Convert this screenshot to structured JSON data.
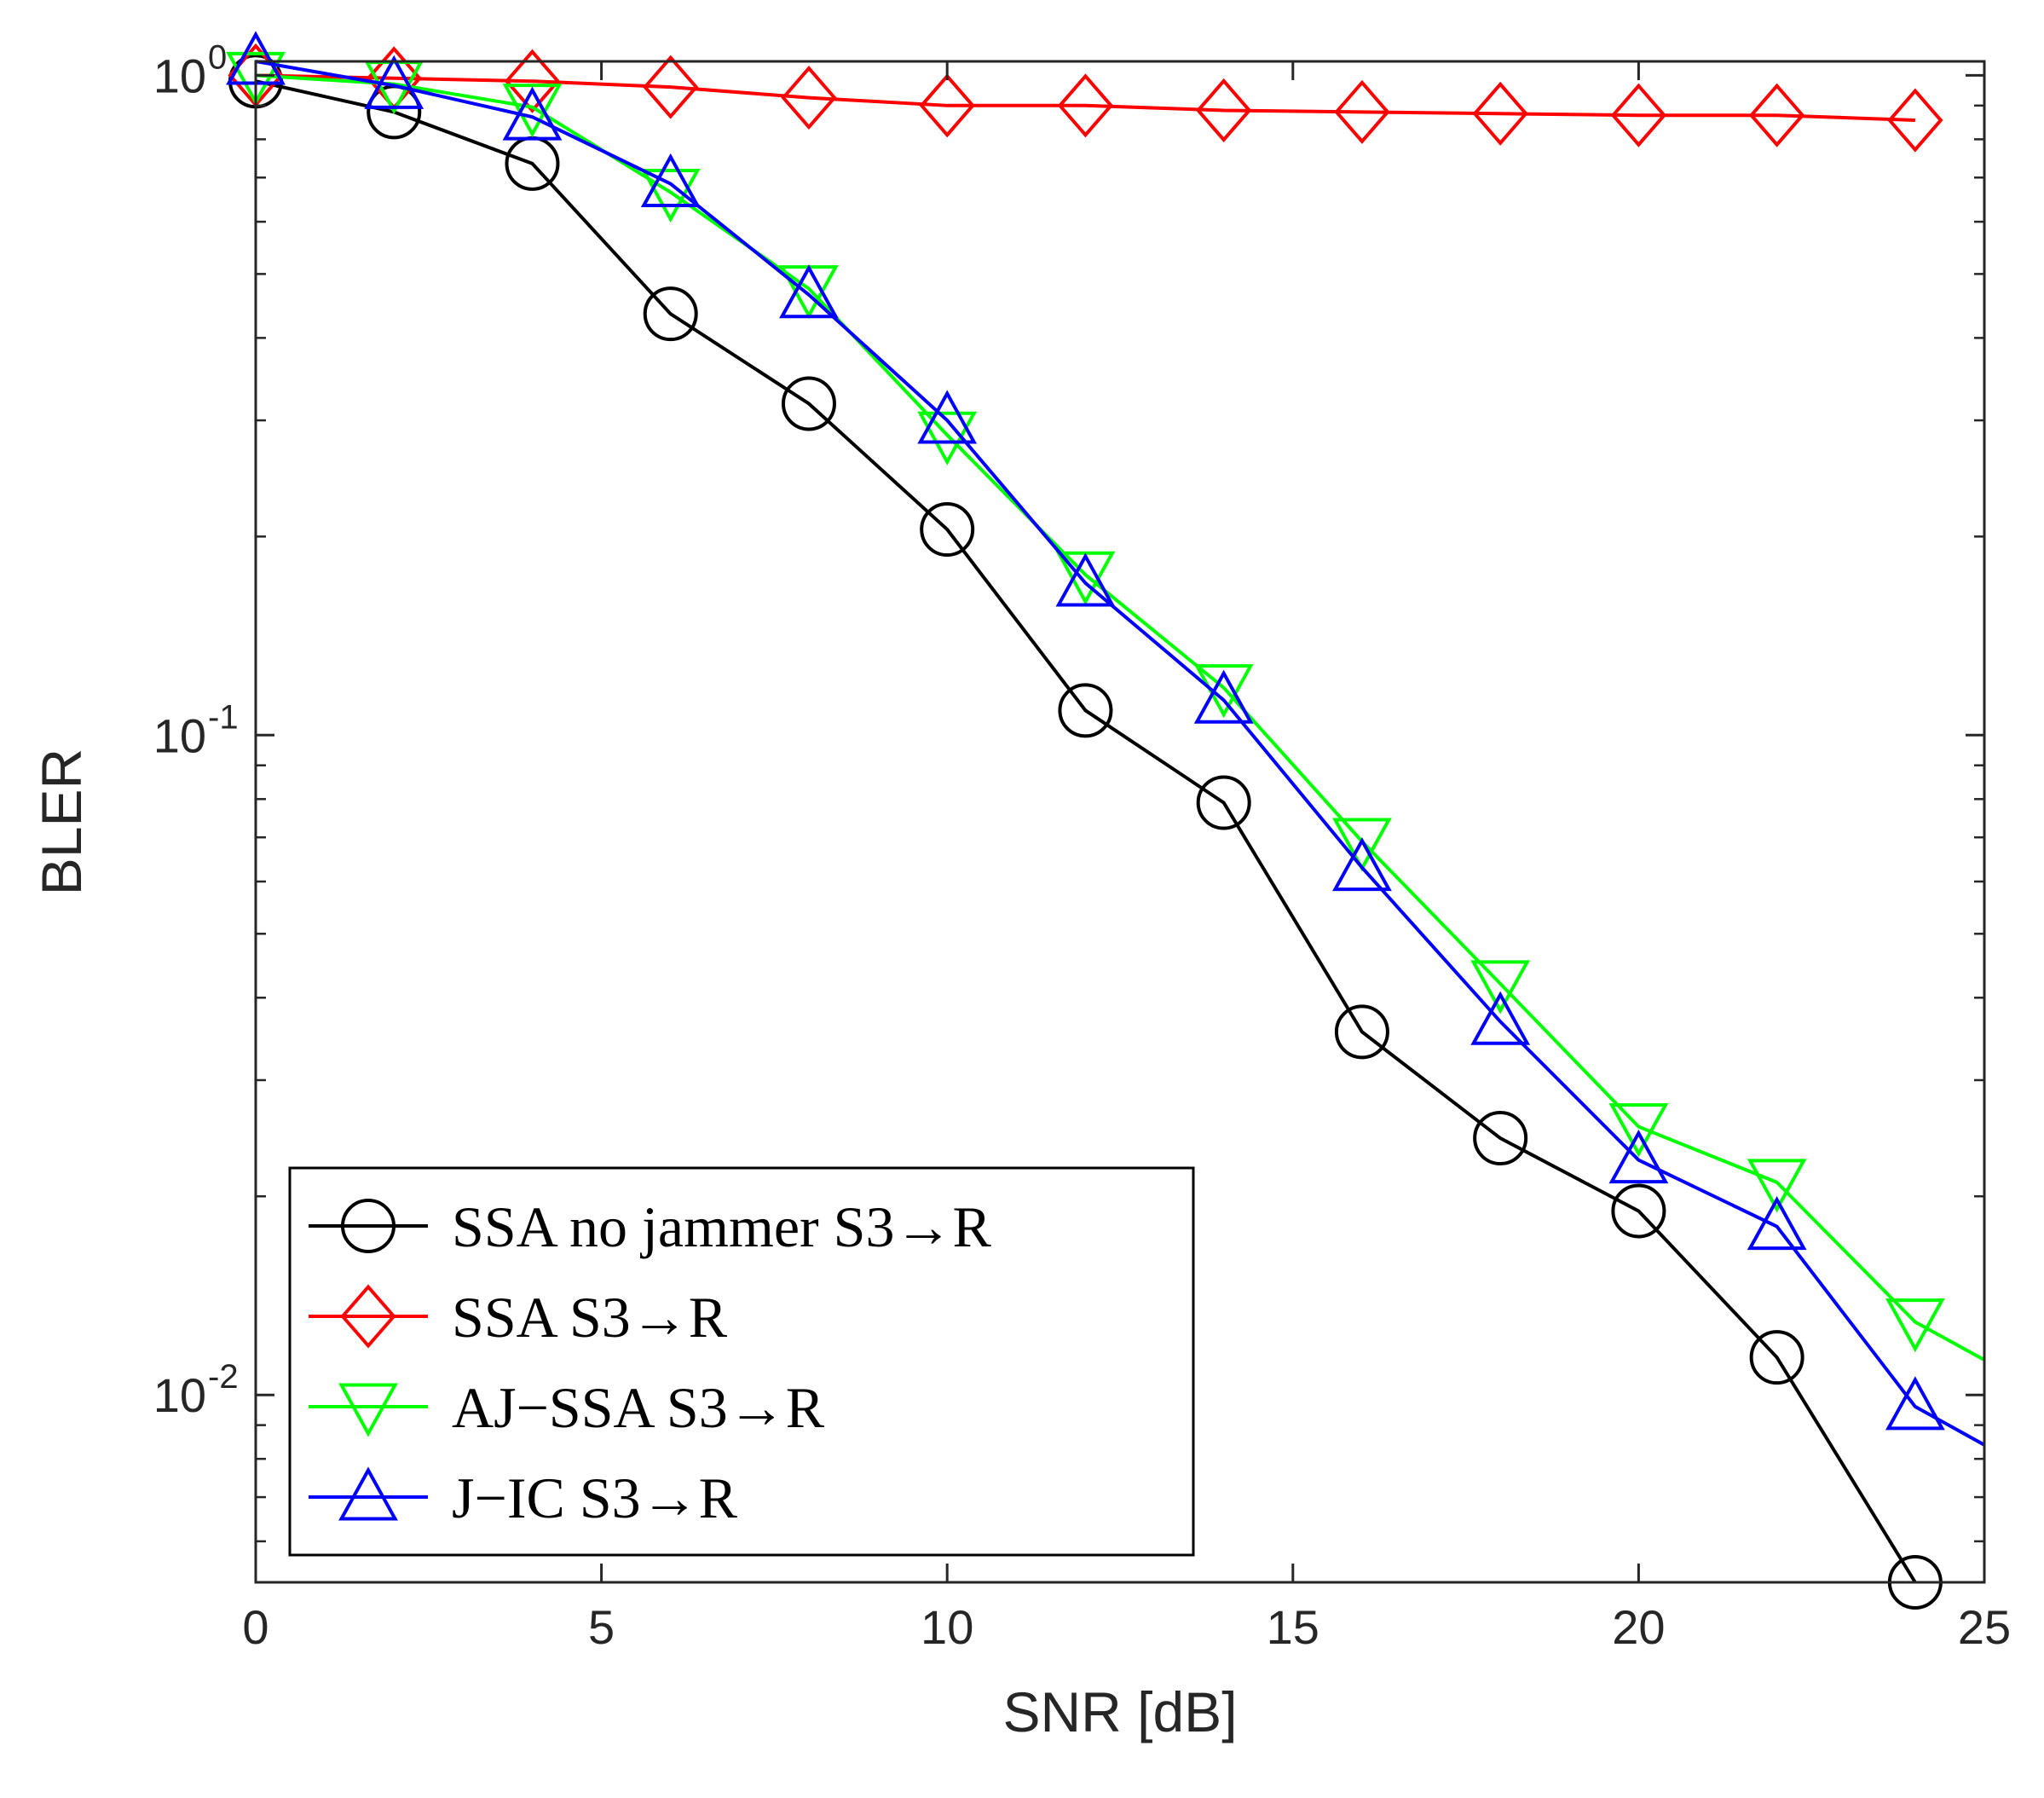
{
  "chart_data": {
    "type": "line",
    "xlabel": "SNR [dB]",
    "ylabel": "BLER",
    "xscale": "linear",
    "yscale": "log",
    "xlim": [
      0,
      25
    ],
    "ylim": [
      0.0052,
      1.05
    ],
    "xticks": [
      {
        "value": 0,
        "label": "0"
      },
      {
        "value": 5,
        "label": "5"
      },
      {
        "value": 10,
        "label": "10"
      },
      {
        "value": 15,
        "label": "15"
      },
      {
        "value": 20,
        "label": "20"
      },
      {
        "value": 25,
        "label": "25"
      }
    ],
    "yticks": [
      {
        "value": 1,
        "base": "10",
        "exp": "0"
      },
      {
        "value": 0.1,
        "base": "10",
        "exp": "-1"
      },
      {
        "value": 0.01,
        "base": "10",
        "exp": "-2"
      }
    ],
    "legend_position": "bottom-left",
    "series": [
      {
        "name": "SSA no jammer S3→R",
        "color": "#000000",
        "marker": "circle",
        "x": [
          0,
          2,
          4,
          6,
          8,
          10,
          12,
          14,
          16,
          18,
          20,
          22,
          24
        ],
        "y": [
          0.98,
          0.88,
          0.735,
          0.435,
          0.318,
          0.205,
          0.109,
          0.079,
          0.0355,
          0.0245,
          0.019,
          0.0114,
          0.0052
        ]
      },
      {
        "name": "SSA S3→R",
        "color": "#ff0000",
        "marker": "diamond",
        "x": [
          0,
          2,
          4,
          6,
          8,
          10,
          12,
          14,
          16,
          18,
          20,
          22,
          24
        ],
        "y": [
          1.0,
          0.99,
          0.98,
          0.96,
          0.925,
          0.9,
          0.9,
          0.885,
          0.88,
          0.875,
          0.87,
          0.87,
          0.855
        ]
      },
      {
        "name": "AJ−SSA S3→R",
        "color": "#00ff00",
        "marker": "triangle-down",
        "x": [
          0,
          2,
          4,
          6,
          8,
          10,
          12,
          14,
          16,
          18,
          20,
          22,
          24,
          25
        ],
        "y": [
          1.0,
          0.97,
          0.895,
          0.665,
          0.475,
          0.285,
          0.175,
          0.118,
          0.069,
          0.042,
          0.0255,
          0.021,
          0.0129,
          0.0113
        ]
      },
      {
        "name": "J−IC S3→R",
        "color": "#0000ff",
        "marker": "triangle-up",
        "x": [
          0,
          2,
          4,
          6,
          8,
          10,
          12,
          14,
          16,
          18,
          20,
          22,
          24,
          25
        ],
        "y": [
          1.05,
          0.965,
          0.865,
          0.685,
          0.465,
          0.3,
          0.17,
          0.113,
          0.063,
          0.0368,
          0.0227,
          0.018,
          0.0096,
          0.0084
        ]
      }
    ]
  }
}
